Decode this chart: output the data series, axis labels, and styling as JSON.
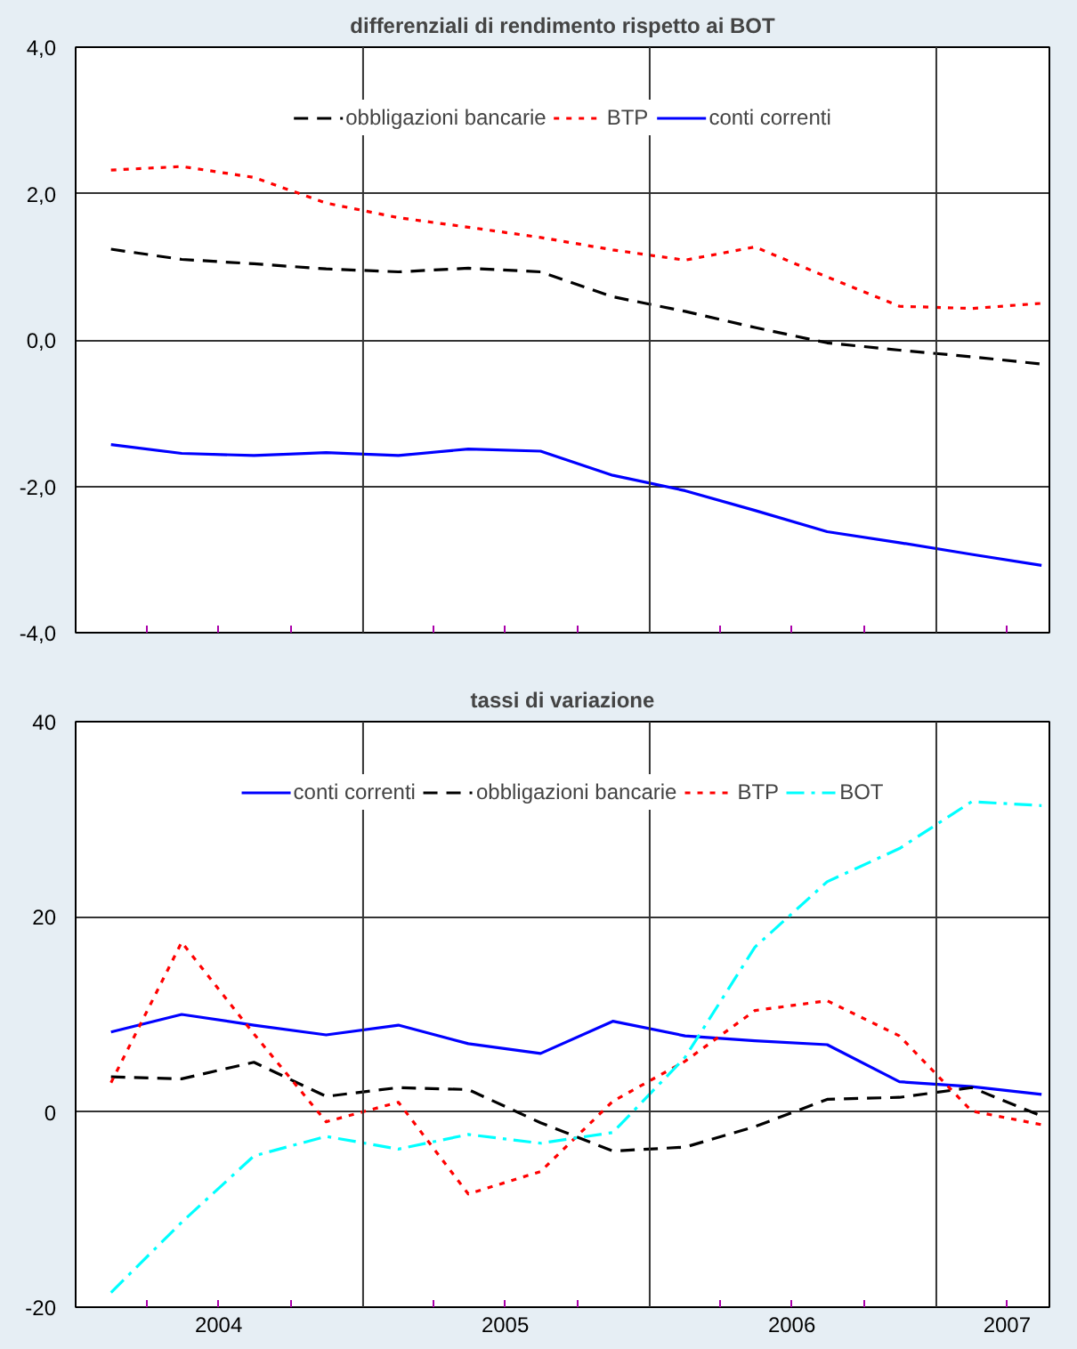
{
  "chart_data": [
    {
      "type": "line",
      "title": "differenziali di rendimento rispetto ai BOT",
      "x": [
        "2004-02-15",
        "2004-05-15",
        "2004-08-15",
        "2004-11-15",
        "2005-02-15",
        "2005-05-15",
        "2005-08-15",
        "2005-11-15",
        "2006-02-15",
        "2006-05-15",
        "2006-08-15",
        "2006-11-15",
        "2007-02-15",
        "2007-05-15"
      ],
      "series": [
        {
          "name": "obbligazioni bancarie",
          "color": "#000000",
          "line_style": "dashed",
          "values": [
            1.24,
            1.1,
            1.04,
            0.97,
            0.93,
            0.98,
            0.93,
            0.59,
            0.39,
            0.17,
            -0.04,
            -0.14,
            -0.23,
            -0.33
          ]
        },
        {
          "name": "BTP",
          "color": "#ff0000",
          "line_style": "dotted",
          "values": [
            2.32,
            2.37,
            2.22,
            1.87,
            1.67,
            1.54,
            1.4,
            1.23,
            1.09,
            1.27,
            0.86,
            0.46,
            0.43,
            0.5
          ]
        },
        {
          "name": "conti correnti",
          "color": "#0000ff",
          "line_style": "solid",
          "values": [
            -1.43,
            -1.55,
            -1.58,
            -1.54,
            -1.58,
            -1.49,
            -1.52,
            -1.85,
            -2.06,
            -2.33,
            -2.62,
            -2.77,
            -2.93,
            -3.08
          ]
        }
      ],
      "xlim": [
        "2004-01-01",
        "2007-05-25"
      ],
      "xticks": [
        {
          "value": "2004-04-01",
          "label": null
        },
        {
          "value": "2004-07-01",
          "label": null
        },
        {
          "value": "2004-10-01",
          "label": null
        },
        {
          "value": "2005-04-01",
          "label": null
        },
        {
          "value": "2005-07-01",
          "label": null
        },
        {
          "value": "2005-10-01",
          "label": null
        },
        {
          "value": "2006-04-01",
          "label": null
        },
        {
          "value": "2006-07-01",
          "label": null
        },
        {
          "value": "2006-10-01",
          "label": null
        },
        {
          "value": "2007-04-01",
          "label": null
        }
      ],
      "ylim": [
        -4,
        4
      ],
      "yticks": [
        {
          "value": -4,
          "label": "-4,0"
        },
        {
          "value": -2,
          "label": "-2,0"
        },
        {
          "value": 0,
          "label": "0,0"
        },
        {
          "value": 2,
          "label": "2,0"
        },
        {
          "value": 4,
          "label": "4,0"
        }
      ],
      "ref_lines": [
        {
          "axis": "x",
          "value": "2005-01-01",
          "label": null
        },
        {
          "axis": "x",
          "value": "2006-01-01",
          "label": null
        },
        {
          "axis": "x",
          "value": "2007-01-01",
          "label": null
        }
      ],
      "grid": "y",
      "legend": "top",
      "tick_labels": "y"
    },
    {
      "type": "line",
      "title": "tassi di variazione",
      "x": [
        "2004-02-15",
        "2004-05-15",
        "2004-08-15",
        "2004-11-15",
        "2005-02-15",
        "2005-05-15",
        "2005-08-15",
        "2005-11-15",
        "2006-02-15",
        "2006-05-15",
        "2006-08-15",
        "2006-11-15",
        "2007-02-15",
        "2007-05-15"
      ],
      "series": [
        {
          "name": "conti correnti",
          "color": "#0000ff",
          "line_style": "solid",
          "values": [
            8.2,
            10.0,
            8.9,
            7.9,
            8.9,
            7.0,
            6.0,
            9.3,
            7.8,
            7.3,
            6.9,
            3.1,
            2.6,
            1.8
          ]
        },
        {
          "name": "obbligazioni bancarie",
          "color": "#000000",
          "line_style": "dashed",
          "values": [
            3.6,
            3.4,
            5.1,
            1.6,
            2.5,
            2.3,
            -1.1,
            -4.0,
            -3.6,
            -1.5,
            1.3,
            1.5,
            2.5,
            -0.4
          ]
        },
        {
          "name": "BTP",
          "color": "#ff0000",
          "line_style": "dotted",
          "values": [
            3.0,
            17.4,
            8.0,
            -1.0,
            1.0,
            -8.4,
            -6.1,
            1.1,
            5.2,
            10.4,
            11.4,
            7.8,
            0.1,
            -1.3
          ]
        },
        {
          "name": "BOT",
          "color": "#00ffff",
          "line_style": "dashdot",
          "values": [
            -18.5,
            -11.3,
            -4.5,
            -2.5,
            -3.8,
            -2.3,
            -3.2,
            -2.1,
            5.6,
            16.9,
            23.6,
            27.0,
            31.8,
            31.4
          ]
        }
      ],
      "xlim": [
        "2004-01-01",
        "2007-05-25"
      ],
      "xticks": [
        {
          "value": "2004-04-01",
          "label": null
        },
        {
          "value": "2004-07-01",
          "label": "2004"
        },
        {
          "value": "2004-10-01",
          "label": null
        },
        {
          "value": "2005-04-01",
          "label": null
        },
        {
          "value": "2005-07-01",
          "label": "2005"
        },
        {
          "value": "2005-10-01",
          "label": null
        },
        {
          "value": "2006-04-01",
          "label": null
        },
        {
          "value": "2006-07-01",
          "label": "2006"
        },
        {
          "value": "2006-10-01",
          "label": null
        },
        {
          "value": "2007-04-01",
          "label": "2007"
        }
      ],
      "ylim": [
        -20,
        40
      ],
      "yticks": [
        -20,
        0,
        20,
        40
      ],
      "ref_lines": [
        {
          "axis": "x",
          "value": "2005-01-01",
          "label": null
        },
        {
          "axis": "x",
          "value": "2006-01-01",
          "label": null
        },
        {
          "axis": "x",
          "value": "2007-01-01",
          "label": null
        }
      ],
      "grid": "y",
      "legend": "top"
    }
  ]
}
